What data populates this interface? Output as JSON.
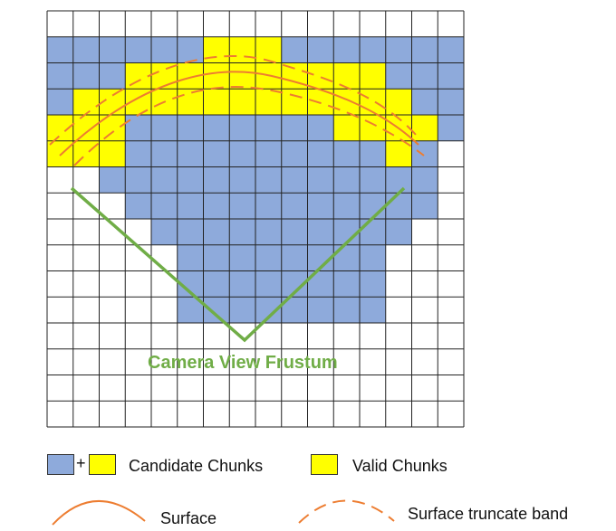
{
  "grid": {
    "rows": 16,
    "cols": 16,
    "colors": {
      "empty": "#ffffff",
      "candidate": "#8eaadb",
      "valid": "#ffff00",
      "grid_line": "#222222"
    },
    "cell_map": [
      "................",
      "CCCCCCYYYCCCCCCC",
      "CCCYYYYYYYYYYCCC",
      "CYYYYYYYYYYYYYCC",
      "YYYCCCCCCCCYYYYC",
      "YYYCCCCCCCCCCYC.",
      "..CCCCCCCCCCCCC.",
      "...CCCCCCCCCCCC.",
      "....CCCCCCCCCC..",
      ".....CCCCCCCC...",
      ".....CCCCCCCC...",
      ".....CCCCCCCC...",
      "................",
      "................",
      "................",
      "................"
    ]
  },
  "frustum": {
    "label": "Camera View Frustum",
    "color": "#70ad47"
  },
  "surface": {
    "color": "#ed7d31"
  },
  "legend": {
    "plus_sign": "+",
    "candidate_label": "Candidate Chunks",
    "valid_label": "Valid Chunks",
    "surface_label": "Surface",
    "band_label": "Surface truncate band"
  }
}
